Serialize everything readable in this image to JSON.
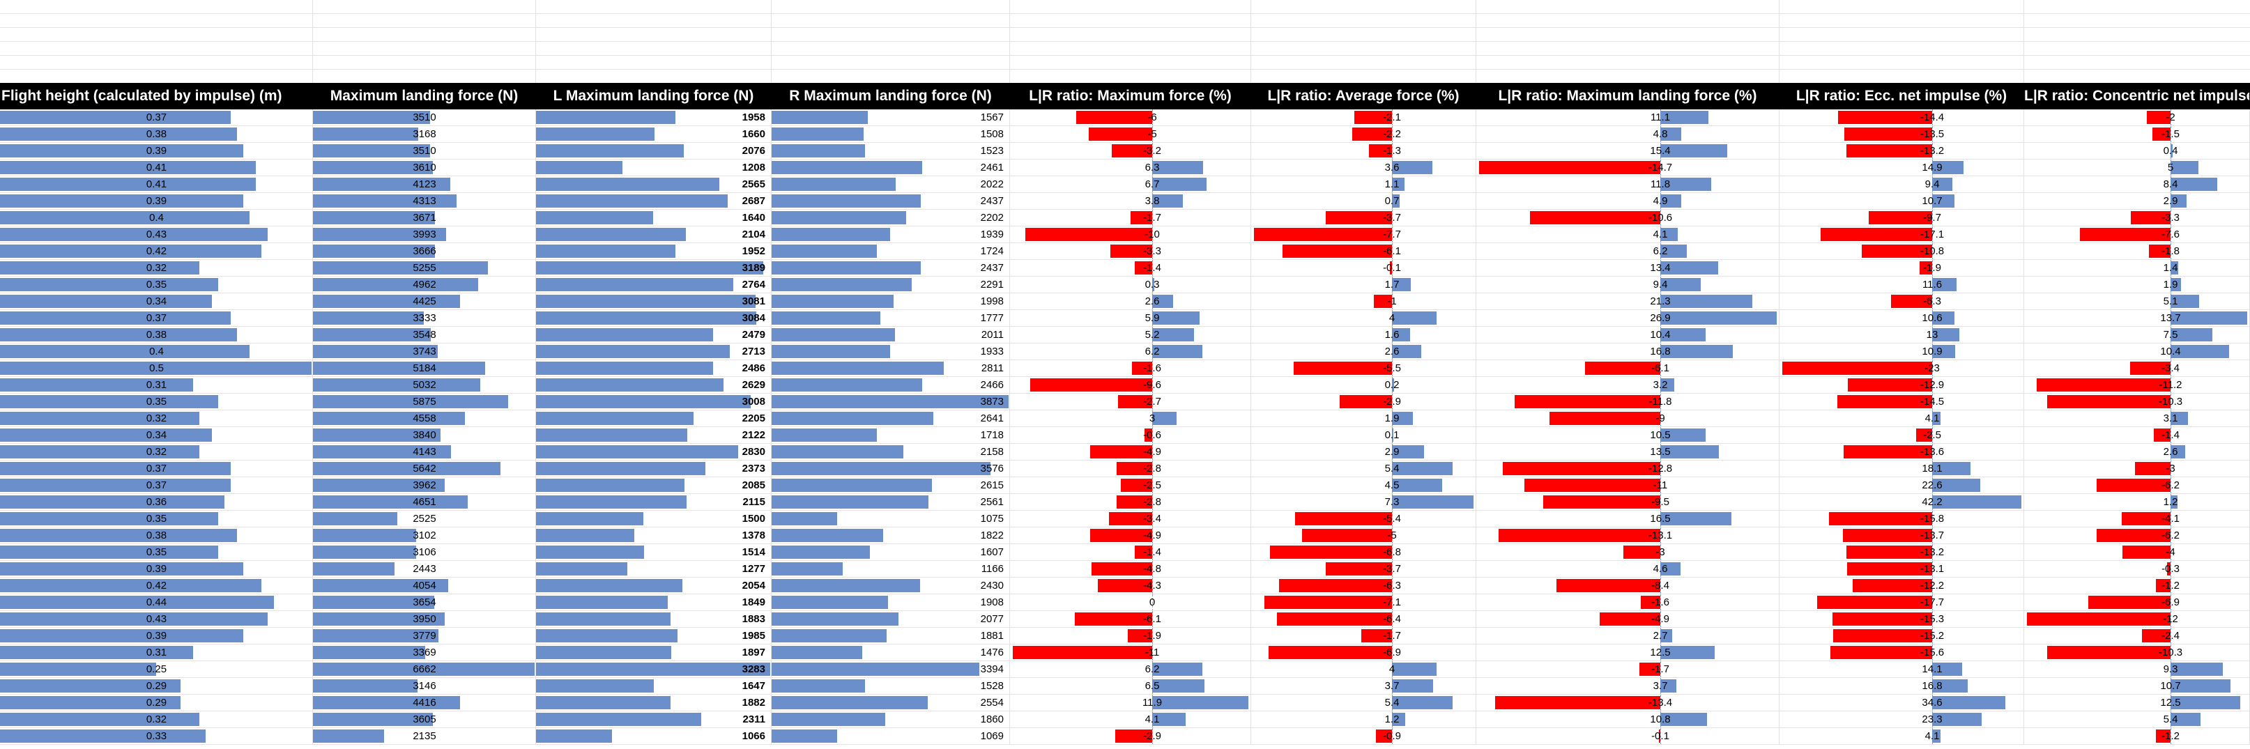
{
  "columns": [
    {
      "key": "fh",
      "label": "Flight height (calculated by impulse) (m)",
      "type": "pos",
      "max": 0.5,
      "align": "c"
    },
    {
      "key": "mlf",
      "label": "Maximum landing force (N)",
      "type": "pos",
      "max": 6662,
      "align": "c"
    },
    {
      "key": "lmlf",
      "label": "L Maximum landing force (N)",
      "type": "pos",
      "max": 3283,
      "align": "r",
      "bold": true
    },
    {
      "key": "rmlf",
      "label": "R Maximum landing force (N)",
      "type": "pos",
      "max": 3873,
      "align": "r"
    },
    {
      "key": "lrmf",
      "label": "L|R ratio: Maximum force (%)",
      "type": "div",
      "min": -11,
      "max": 11.9,
      "align": "c"
    },
    {
      "key": "lraf",
      "label": "L|R ratio: Average force (%)",
      "type": "div",
      "min": -7.7,
      "max": 7.3,
      "align": "c"
    },
    {
      "key": "lrmlf",
      "label": "L|R ratio: Maximum landing force (%)",
      "type": "div",
      "min": -14.7,
      "max": 26.9,
      "align": "c"
    },
    {
      "key": "lrecc",
      "label": "L|R ratio: Ecc. net impulse (%)",
      "type": "div",
      "min": -23,
      "max": 42.2,
      "align": "c"
    },
    {
      "key": "lrcon",
      "label": "L|R ratio: Concentric net impulse (%)",
      "type": "div",
      "min": -12,
      "max": 13.7,
      "align": "c"
    }
  ],
  "rows": [
    [
      "0.37",
      "3510",
      "1958",
      "1567",
      "-6",
      "-2.1",
      "11.1",
      "-14.4",
      "-2"
    ],
    [
      "0.38",
      "3168",
      "1660",
      "1508",
      "-5",
      "-2.2",
      "4.8",
      "-13.5",
      "-1.5"
    ],
    [
      "0.39",
      "3510",
      "2076",
      "1523",
      "-3.2",
      "-1.3",
      "15.4",
      "-13.2",
      "0.4"
    ],
    [
      "0.41",
      "3610",
      "1208",
      "2461",
      "6.3",
      "3.6",
      "-14.7",
      "14.9",
      "5"
    ],
    [
      "0.41",
      "4123",
      "2565",
      "2022",
      "6.7",
      "1.1",
      "11.8",
      "9.4",
      "8.4"
    ],
    [
      "0.39",
      "4313",
      "2687",
      "2437",
      "3.8",
      "0.7",
      "4.9",
      "10.7",
      "2.9"
    ],
    [
      "0.4",
      "3671",
      "1640",
      "2202",
      "-1.7",
      "-3.7",
      "-10.6",
      "-9.7",
      "-3.3"
    ],
    [
      "0.43",
      "3993",
      "2104",
      "1939",
      "-10",
      "-7.7",
      "4.1",
      "-17.1",
      "-7.6"
    ],
    [
      "0.42",
      "3666",
      "1952",
      "1724",
      "-3.3",
      "-6.1",
      "6.2",
      "-10.8",
      "-1.8"
    ],
    [
      "0.32",
      "5255",
      "3189",
      "2437",
      "-1.4",
      "-0.1",
      "13.4",
      "-1.9",
      "1.4"
    ],
    [
      "0.35",
      "4962",
      "2764",
      "2291",
      "0.3",
      "1.7",
      "9.4",
      "11.6",
      "1.9"
    ],
    [
      "0.34",
      "4425",
      "3081",
      "1998",
      "2.6",
      "-1",
      "21.3",
      "-6.3",
      "5.1"
    ],
    [
      "0.37",
      "3333",
      "3084",
      "1777",
      "5.9",
      "4",
      "26.9",
      "10.6",
      "13.7"
    ],
    [
      "0.38",
      "3548",
      "2479",
      "2011",
      "5.2",
      "1.6",
      "10.4",
      "13",
      "7.5"
    ],
    [
      "0.4",
      "3743",
      "2713",
      "1933",
      "6.2",
      "2.6",
      "16.8",
      "10.9",
      "10.4"
    ],
    [
      "0.5",
      "5184",
      "2486",
      "2811",
      "-1.6",
      "-5.5",
      "-6.1",
      "-23",
      "-3.4"
    ],
    [
      "0.31",
      "5032",
      "2629",
      "2466",
      "-9.6",
      "0.2",
      "3.2",
      "-12.9",
      "-11.2"
    ],
    [
      "0.35",
      "5875",
      "3008",
      "3873",
      "-2.7",
      "-2.9",
      "-11.8",
      "-14.5",
      "-10.3"
    ],
    [
      "0.32",
      "4558",
      "2205",
      "2641",
      "3",
      "1.9",
      "-9",
      "4.1",
      "3.1"
    ],
    [
      "0.34",
      "3840",
      "2122",
      "1718",
      "-0.6",
      "0.1",
      "10.5",
      "-2.5",
      "-1.4"
    ],
    [
      "0.32",
      "4143",
      "2830",
      "2158",
      "-4.9",
      "2.9",
      "13.5",
      "-13.6",
      "2.6"
    ],
    [
      "0.37",
      "5642",
      "2373",
      "3576",
      "-2.8",
      "5.4",
      "-12.8",
      "18.1",
      "-3"
    ],
    [
      "0.37",
      "3962",
      "2085",
      "2615",
      "-2.5",
      "4.5",
      "-11",
      "22.6",
      "-6.2"
    ],
    [
      "0.36",
      "4651",
      "2115",
      "2561",
      "-2.8",
      "7.3",
      "-9.5",
      "42.2",
      "1.2"
    ],
    [
      "0.35",
      "2525",
      "1500",
      "1075",
      "-3.4",
      "-5.4",
      "16.5",
      "-15.8",
      "-4.1"
    ],
    [
      "0.38",
      "3102",
      "1378",
      "1822",
      "-4.9",
      "-5",
      "-13.1",
      "-13.7",
      "-6.2"
    ],
    [
      "0.35",
      "3106",
      "1514",
      "1607",
      "-1.4",
      "-6.8",
      "-3",
      "-13.2",
      "-4"
    ],
    [
      "0.39",
      "2443",
      "1277",
      "1166",
      "-4.8",
      "-3.7",
      "4.6",
      "-13.1",
      "-0.3"
    ],
    [
      "0.42",
      "4054",
      "2054",
      "2430",
      "-4.3",
      "-6.3",
      "-8.4",
      "-12.2",
      "-1.2"
    ],
    [
      "0.44",
      "3654",
      "1849",
      "1908",
      "0",
      "-7.1",
      "-1.6",
      "-17.7",
      "-6.9"
    ],
    [
      "0.43",
      "3950",
      "1883",
      "2077",
      "-6.1",
      "-6.4",
      "-4.9",
      "-15.3",
      "-12"
    ],
    [
      "0.39",
      "3779",
      "1985",
      "1881",
      "-1.9",
      "-1.7",
      "2.7",
      "-15.2",
      "-2.4"
    ],
    [
      "0.31",
      "3369",
      "1897",
      "1476",
      "-11",
      "-6.9",
      "12.5",
      "-15.6",
      "-10.3"
    ],
    [
      "0.25",
      "6662",
      "3283",
      "3394",
      "6.2",
      "4",
      "-1.7",
      "14.1",
      "9.3"
    ],
    [
      "0.29",
      "3146",
      "1647",
      "1528",
      "6.5",
      "3.7",
      "3.7",
      "16.8",
      "10.7"
    ],
    [
      "0.29",
      "4416",
      "1882",
      "2554",
      "11.9",
      "5.4",
      "-13.4",
      "34.6",
      "12.5"
    ],
    [
      "0.32",
      "3605",
      "2311",
      "1860",
      "4.1",
      "1.2",
      "10.8",
      "23.3",
      "5.4"
    ],
    [
      "0.33",
      "2135",
      "1066",
      "1069",
      "-2.9",
      "-0.9",
      "-0.1",
      "4.1",
      "-1.2"
    ]
  ],
  "colors": {
    "positive_bar": "#6a8fca",
    "negative_bar": "#ff0000",
    "header_bg": "#000000",
    "header_text": "#ffffff"
  }
}
